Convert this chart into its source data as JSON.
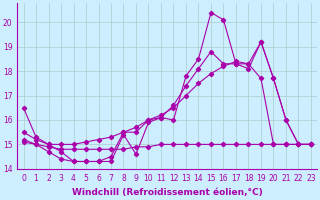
{
  "bg_color": "#cceeff",
  "line_color": "#aa00aa",
  "grid_color": "#aacccc",
  "xlabel": "Windchill (Refroidissement éolien,°C)",
  "xlabel_fontsize": 6.5,
  "tick_fontsize": 5.5,
  "ylim": [
    14.0,
    20.8
  ],
  "xlim": [
    -0.5,
    23.5
  ],
  "yticks": [
    14,
    15,
    16,
    17,
    18,
    19,
    20
  ],
  "xticks": [
    0,
    1,
    2,
    3,
    4,
    5,
    6,
    7,
    8,
    9,
    10,
    11,
    12,
    13,
    14,
    15,
    16,
    17,
    18,
    19,
    20,
    21,
    22,
    23
  ],
  "series1_x": [
    0,
    1,
    2,
    3,
    4,
    5,
    6,
    7,
    8,
    9,
    10,
    11,
    12,
    13,
    14,
    15,
    16,
    17,
    18,
    19,
    20,
    21,
    22,
    23
  ],
  "series1_y": [
    16.5,
    15.3,
    15.0,
    14.7,
    14.3,
    14.3,
    14.3,
    14.3,
    15.4,
    14.6,
    15.9,
    16.1,
    16.0,
    17.8,
    18.5,
    20.4,
    20.1,
    18.3,
    18.3,
    19.2,
    17.7,
    16.0,
    15.0,
    15.0
  ],
  "series2_x": [
    0,
    1,
    2,
    3,
    4,
    5,
    6,
    7,
    8,
    9,
    10,
    11,
    12,
    13,
    14,
    15,
    16,
    17,
    18,
    19,
    20,
    21,
    22,
    23
  ],
  "series2_y": [
    15.5,
    15.2,
    15.0,
    15.0,
    15.0,
    15.1,
    15.2,
    15.3,
    15.5,
    15.7,
    16.0,
    16.2,
    16.5,
    17.0,
    17.5,
    17.9,
    18.2,
    18.4,
    18.3,
    17.7,
    15.0,
    15.0,
    15.0,
    15.0
  ],
  "series3_x": [
    0,
    1,
    2,
    3,
    4,
    5,
    6,
    7,
    8,
    9,
    10,
    11,
    12,
    13,
    14,
    15,
    16,
    17,
    18,
    19,
    20,
    21,
    22,
    23
  ],
  "series3_y": [
    15.2,
    15.0,
    14.7,
    14.4,
    14.3,
    14.3,
    14.3,
    14.5,
    15.5,
    15.5,
    16.0,
    16.1,
    16.6,
    17.4,
    18.1,
    18.8,
    18.3,
    18.3,
    18.1,
    19.2,
    17.7,
    16.0,
    15.0,
    15.0
  ],
  "series4_x": [
    0,
    1,
    2,
    3,
    4,
    5,
    6,
    7,
    8,
    9,
    10,
    11,
    12,
    13,
    14,
    15,
    16,
    17,
    18,
    19,
    20,
    21,
    22,
    23
  ],
  "series4_y": [
    15.1,
    15.0,
    14.9,
    14.8,
    14.8,
    14.8,
    14.8,
    14.8,
    14.8,
    14.9,
    14.9,
    15.0,
    15.0,
    15.0,
    15.0,
    15.0,
    15.0,
    15.0,
    15.0,
    15.0,
    15.0,
    15.0,
    15.0,
    15.0
  ]
}
